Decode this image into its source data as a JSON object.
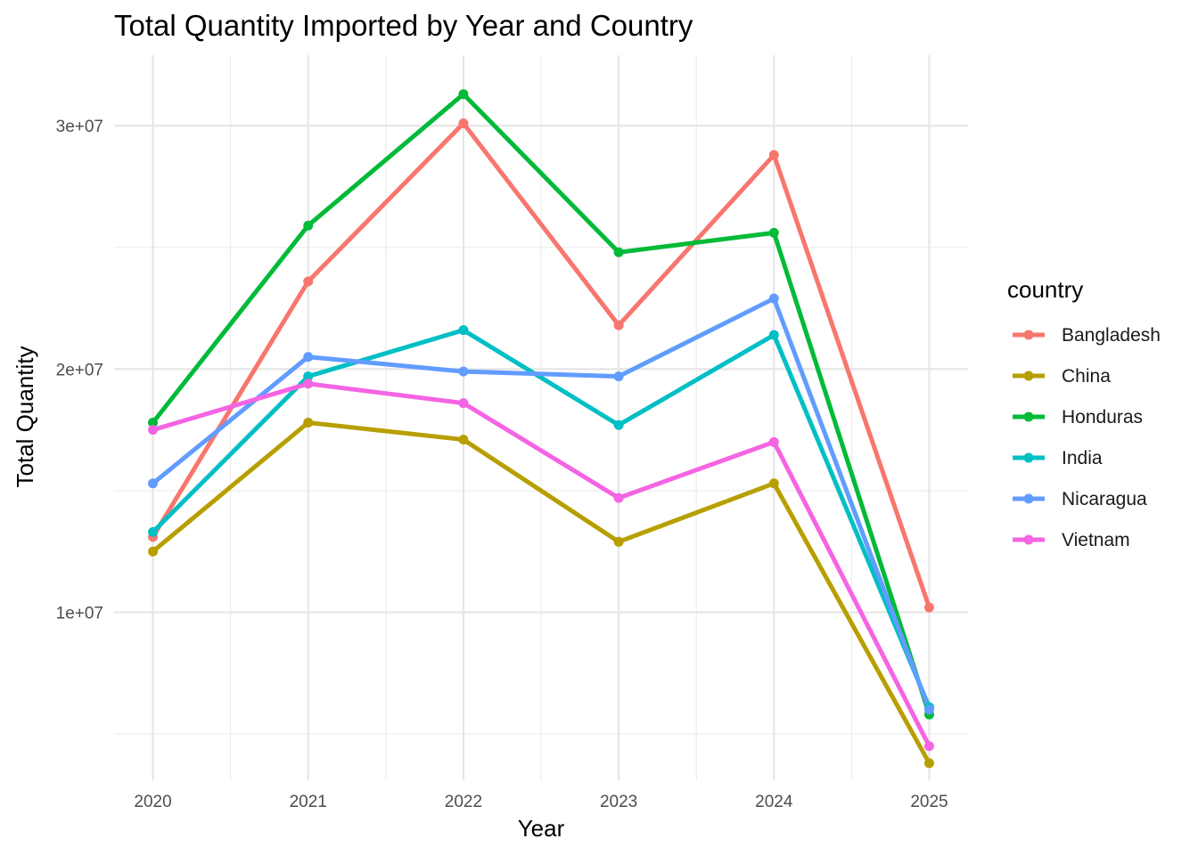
{
  "chart_data": {
    "type": "line",
    "title": "Total Quantity Imported by Year and Country",
    "xlabel": "Year",
    "ylabel": "Total Quantity",
    "x": [
      2020,
      2021,
      2022,
      2023,
      2024,
      2025
    ],
    "x_ticks": [
      "2020",
      "2021",
      "2022",
      "2023",
      "2024",
      "2025"
    ],
    "y_ticks": [
      {
        "value": 10000000,
        "label": "1e+07"
      },
      {
        "value": 20000000,
        "label": "2e+07"
      },
      {
        "value": 30000000,
        "label": "3e+07"
      }
    ],
    "ylim": [
      3100000,
      32900000
    ],
    "xlim": [
      2019.75,
      2025.25
    ],
    "grid": true,
    "legend": {
      "title": "country",
      "position": "right"
    },
    "series": [
      {
        "name": "Bangladesh",
        "color": "#F8766D",
        "values": [
          13100000,
          23600000,
          30100000,
          21800000,
          28800000,
          10200000
        ]
      },
      {
        "name": "China",
        "color": "#B79F00",
        "values": [
          12500000,
          17800000,
          17100000,
          12900000,
          15300000,
          3800000
        ]
      },
      {
        "name": "Honduras",
        "color": "#00BA38",
        "values": [
          17800000,
          25900000,
          31300000,
          24800000,
          25600000,
          5800000
        ]
      },
      {
        "name": "India",
        "color": "#00BFC4",
        "values": [
          13300000,
          19700000,
          21600000,
          17700000,
          21400000,
          6100000
        ]
      },
      {
        "name": "Nicaragua",
        "color": "#619CFF",
        "values": [
          15300000,
          20500000,
          19900000,
          19700000,
          22900000,
          6000000
        ]
      },
      {
        "name": "Vietnam",
        "color": "#F564E3",
        "values": [
          17500000,
          19400000,
          18600000,
          14700000,
          17000000,
          4500000
        ]
      }
    ]
  }
}
